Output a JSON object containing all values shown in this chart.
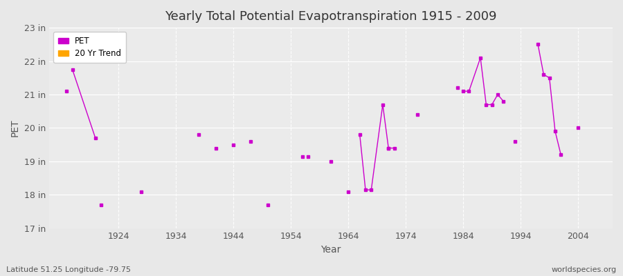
{
  "title": "Yearly Total Potential Evapotranspiration 1915 - 2009",
  "xlabel": "Year",
  "ylabel": "PET",
  "subtitle_left": "Latitude 51.25 Longitude -79.75",
  "subtitle_right": "worldspecies.org",
  "ylim": [
    17,
    23
  ],
  "ytick_labels": [
    "17 in",
    "18 in",
    "19 in",
    "20 in",
    "21 in",
    "22 in",
    "23 in"
  ],
  "ytick_values": [
    17,
    18,
    19,
    20,
    21,
    22,
    23
  ],
  "xlim": [
    1912,
    2010
  ],
  "xtick_values": [
    1924,
    1934,
    1944,
    1954,
    1964,
    1974,
    1984,
    1994,
    2004
  ],
  "pet_color": "#cc00cc",
  "trend_color": "#FFA500",
  "bg_color": "#e8e8e8",
  "plot_bg_color": "#ebebeb",
  "grid_color": "#ffffff",
  "isolated_points": [
    [
      1915,
      21.1
    ],
    [
      1921,
      17.7
    ],
    [
      1928,
      18.1
    ],
    [
      1938,
      19.8
    ],
    [
      1941,
      19.4
    ],
    [
      1944,
      19.5
    ],
    [
      1947,
      19.6
    ],
    [
      1950,
      17.7
    ],
    [
      1956,
      19.15
    ],
    [
      1957,
      19.15
    ],
    [
      1961,
      19.0
    ],
    [
      1964,
      18.1
    ],
    [
      1971,
      19.4
    ],
    [
      1976,
      20.4
    ],
    [
      1983,
      21.2
    ],
    [
      1993,
      19.6
    ],
    [
      2004,
      20.0
    ]
  ],
  "connected_segments": [
    [
      [
        1916,
        21.75
      ],
      [
        1920,
        19.7
      ]
    ],
    [
      [
        1966,
        19.8
      ],
      [
        1967,
        18.15
      ],
      [
        1968,
        18.15
      ],
      [
        1970,
        20.7
      ],
      [
        1971,
        19.4
      ],
      [
        1972,
        19.4
      ]
    ],
    [
      [
        1984,
        21.1
      ],
      [
        1985,
        21.1
      ],
      [
        1987,
        22.1
      ],
      [
        1988,
        20.7
      ],
      [
        1989,
        20.7
      ],
      [
        1990,
        21.0
      ],
      [
        1991,
        20.8
      ]
    ],
    [
      [
        1997,
        22.5
      ],
      [
        1998,
        21.6
      ],
      [
        1999,
        21.5
      ],
      [
        2000,
        19.9
      ],
      [
        2001,
        19.2
      ]
    ]
  ]
}
